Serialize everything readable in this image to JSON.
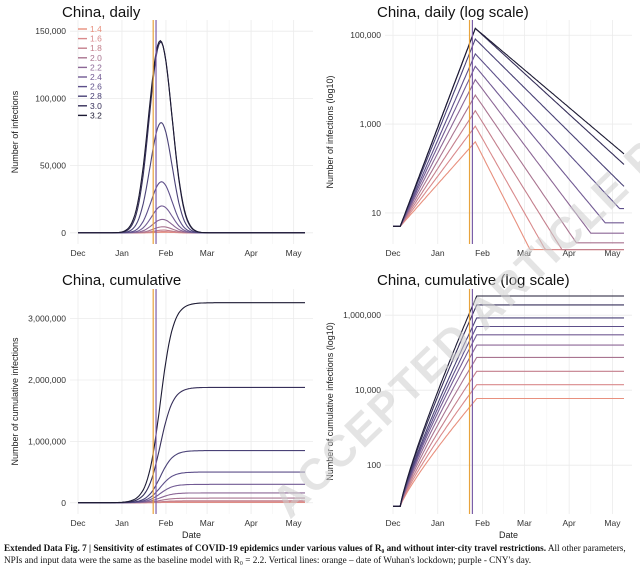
{
  "caption": {
    "label": "Extended Data Fig. 7 | ",
    "bold": "Sensitivity of estimates of COVID-19 epidemics under various values of R₀ and without inter-city travel restrictions.",
    "rest": " All other parameters, NPIs and input data were the same as the baseline model with R₀ = 2.2. Vertical lines: orange – date of Wuhan's lockdown; purple - CNY's day."
  },
  "watermark": "ACCEPTED ARTICLE PREVIEW",
  "legend": {
    "labels": [
      "1.4",
      "1.6",
      "1.8",
      "2.0",
      "2.2",
      "2.4",
      "2.6",
      "2.8",
      "3.0",
      "3.2"
    ],
    "colors": [
      "#e8907e",
      "#d98a8c",
      "#c47f8c",
      "#a97490",
      "#8c6796",
      "#725b94",
      "#5d4f8a",
      "#4a4277",
      "#362f5a",
      "#1c1a33"
    ]
  },
  "vlines": {
    "lockdown_color": "#e8a33d",
    "cny_color": "#7b5ea7"
  },
  "chart_data": [
    {
      "type": "line",
      "title": "China, daily",
      "xlabel": "",
      "ylabel": "Number of infections",
      "x_ticks": [
        "Dec",
        "Jan",
        "Feb",
        "Mar",
        "Apr",
        "May"
      ],
      "y_ticks": [
        "0",
        "50,000",
        "100,000",
        "150,000"
      ],
      "ylim": [
        0,
        150000
      ],
      "scale": "linear",
      "peaks": [
        400,
        900,
        2000,
        4500,
        10000,
        20000,
        38000,
        82000,
        142000,
        143000
      ],
      "peak_date": "late Jan"
    },
    {
      "type": "line",
      "title": "China, daily (log scale)",
      "xlabel": "",
      "ylabel": "Number of infections (log10)",
      "x_ticks": [
        "Dec",
        "Jan",
        "Feb",
        "Mar",
        "Apr",
        "May"
      ],
      "y_ticks": [
        "10",
        "1,000",
        "100,000"
      ],
      "scale": "log",
      "peaks": [
        400,
        900,
        2000,
        4500,
        10000,
        20000,
        38000,
        82000,
        142000,
        143000
      ]
    },
    {
      "type": "line",
      "title": "China, cumulative",
      "xlabel": "Date",
      "ylabel": "Number of cumulative infections",
      "x_ticks": [
        "Dec",
        "Jan",
        "Feb",
        "Mar",
        "Apr",
        "May"
      ],
      "y_ticks": [
        "0",
        "1,000,000",
        "2,000,000",
        "3,000,000"
      ],
      "ylim": [
        0,
        3300000
      ],
      "scale": "linear",
      "finals": [
        6000,
        14000,
        32000,
        75000,
        160000,
        300000,
        500000,
        850000,
        1880000,
        3260000
      ]
    },
    {
      "type": "line",
      "title": "China, cumulative (log scale)",
      "xlabel": "Date",
      "ylabel": "Number of cumulative infections (log10)",
      "x_ticks": [
        "Dec",
        "Jan",
        "Feb",
        "Mar",
        "Apr",
        "May"
      ],
      "y_ticks": [
        "100",
        "10,000",
        "1,000,000"
      ],
      "scale": "log",
      "finals": [
        6000,
        14000,
        32000,
        75000,
        160000,
        300000,
        500000,
        850000,
        1880000,
        3260000
      ]
    }
  ]
}
